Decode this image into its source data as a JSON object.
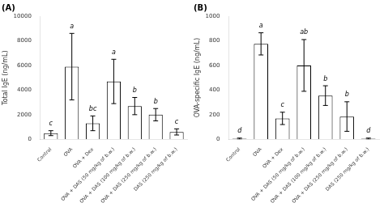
{
  "chart_data": [
    {
      "type": "bar",
      "title": "(A)",
      "ylabel": "Total IgE (ng/mL)",
      "categories": [
        "Control",
        "OVA",
        "OVA + Dex",
        "OVA + DAS (50 mg/kg of b.w.)",
        "OVA + DAS (100 mg/kg of b.w.)",
        "OVA + DAS (250 mg/kg of b.w.)",
        "DAS (250 mg/kg of b.w.)"
      ],
      "values": [
        500,
        5900,
        1300,
        4700,
        2700,
        2000,
        600
      ],
      "errors": [
        200,
        2700,
        600,
        1800,
        700,
        500,
        250
      ],
      "letters": [
        "c",
        "a",
        "bc",
        "a",
        "b",
        "b",
        "c"
      ],
      "color": "#ffffff",
      "ylim": [
        0,
        10000
      ],
      "yticks": [
        0,
        2000,
        4000,
        6000,
        8000,
        10000
      ],
      "grid": false
    },
    {
      "type": "bar",
      "title": "(B)",
      "ylabel": "OVA-specific IgE (ng/mL)",
      "categories": [
        "Control",
        "OVA",
        "OVA + Dex",
        "OVA + DAS (50 mg/kg of b.w.)",
        "OVA + DAS (100 mg/kg of b.w.)",
        "OVA + DAS (250 mg/kg of b.w.)",
        "DAS (250 mg/kg of b.w.)"
      ],
      "values": [
        5,
        775,
        170,
        600,
        355,
        185,
        5
      ],
      "errors": [
        5,
        90,
        50,
        210,
        80,
        120,
        5
      ],
      "letters": [
        "d",
        "a",
        "c",
        "ab",
        "b",
        "b",
        "d"
      ],
      "color": "#ffffff",
      "ylim": [
        0,
        1000
      ],
      "yticks": [
        0,
        200,
        400,
        600,
        800,
        1000
      ],
      "grid": false
    }
  ]
}
